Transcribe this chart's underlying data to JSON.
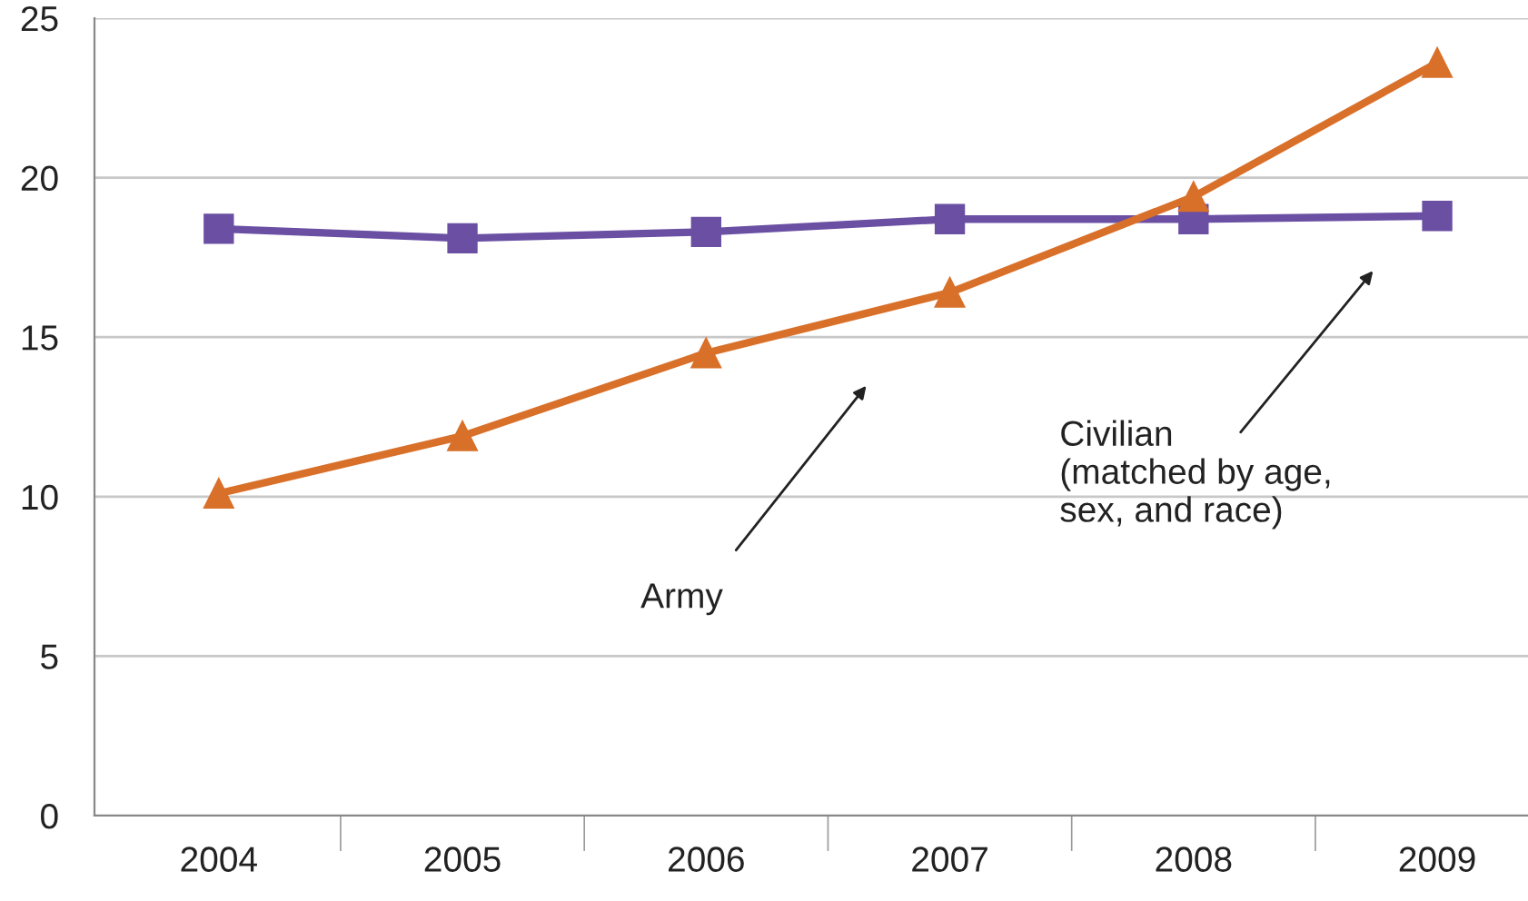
{
  "chart_data": {
    "type": "line",
    "categories": [
      "2004",
      "2005",
      "2006",
      "2007",
      "2008",
      "2009"
    ],
    "series": [
      {
        "color": "#6a4fa3",
        "marker": "square",
        "values": [
          18.4,
          18.1,
          18.3,
          18.7,
          18.7,
          18.8
        ]
      },
      {
        "color": "#d9702a",
        "marker": "triangle",
        "values": [
          10.1,
          11.9,
          14.5,
          16.4,
          19.4,
          23.6
        ]
      }
    ],
    "ylim": [
      0,
      25
    ],
    "yticks": [
      0,
      5,
      10,
      15,
      20,
      25
    ],
    "grid": "y",
    "annotations": [
      "Army",
      "Civilian\n(matched by age,\nsex, and race)"
    ]
  }
}
